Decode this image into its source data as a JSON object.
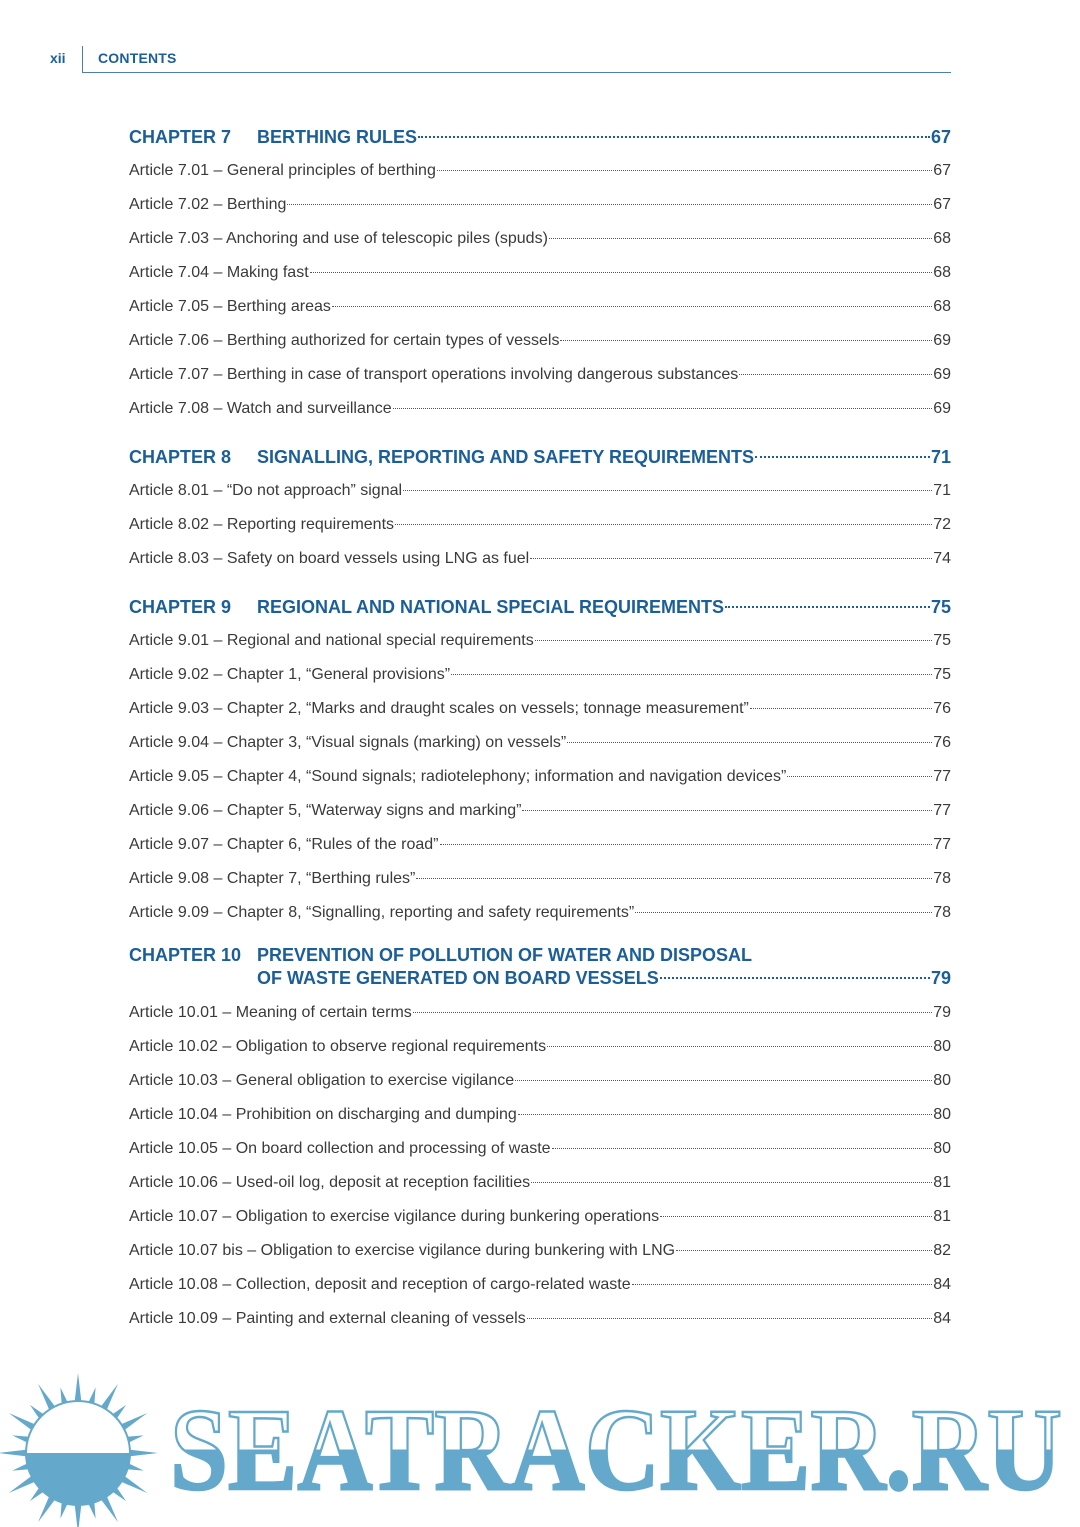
{
  "header": {
    "page_number": "xii",
    "section": "CONTENTS"
  },
  "chapters": [
    {
      "number": "CHAPTER 7",
      "title": "BERTHING RULES",
      "page": "67",
      "articles": [
        {
          "label": "Article 7.01 – General principles of berthing",
          "page": "67"
        },
        {
          "label": "Article 7.02 – Berthing",
          "page": "67"
        },
        {
          "label": "Article 7.03 – Anchoring and use of telescopic piles (spuds)",
          "page": "68"
        },
        {
          "label": "Article 7.04 – Making fast",
          "page": "68"
        },
        {
          "label": "Article 7.05 – Berthing areas",
          "page": "68"
        },
        {
          "label": "Article 7.06 – Berthing authorized for certain types of vessels",
          "page": "69"
        },
        {
          "label": "Article 7.07 – Berthing in case of transport operations involving dangerous substances",
          "page": "69"
        },
        {
          "label": "Article 7.08 – Watch and surveillance",
          "page": "69"
        }
      ]
    },
    {
      "number": "CHAPTER 8",
      "title": "SIGNALLING, REPORTING AND SAFETY REQUIREMENTS",
      "page": "71",
      "articles": [
        {
          "label": "Article 8.01 – “Do not approach” signal",
          "page": "71"
        },
        {
          "label": "Article 8.02 – Reporting requirements",
          "page": "72"
        },
        {
          "label": "Article 8.03 – Safety on board vessels using LNG as fuel",
          "page": "74"
        }
      ]
    },
    {
      "number": "CHAPTER 9",
      "title": "REGIONAL AND NATIONAL SPECIAL REQUIREMENTS",
      "page": "75",
      "articles": [
        {
          "label": "Article 9.01 – Regional and national special requirements",
          "page": "75"
        },
        {
          "label": "Article 9.02 – Chapter 1, “General provisions”",
          "page": "75"
        },
        {
          "label": "Article 9.03 – Chapter 2, “Marks and draught scales on vessels; tonnage measurement”",
          "page": "76"
        },
        {
          "label": "Article 9.04 – Chapter 3, “Visual signals (marking) on vessels”",
          "page": "76"
        },
        {
          "label": "Article 9.05 – Chapter 4, “Sound signals; radiotelephony; information and navigation devices”",
          "page": "77"
        },
        {
          "label": "Article 9.06 – Chapter 5, “Waterway signs and marking”",
          "page": "77"
        },
        {
          "label": "Article 9.07 – Chapter 6, “Rules of the road”",
          "page": "77"
        },
        {
          "label": "Article 9.08 – Chapter 7, “Berthing rules”",
          "page": "78"
        },
        {
          "label": "Article 9.09 – Chapter 8, “Signalling, reporting and safety requirements”",
          "page": "78"
        }
      ]
    },
    {
      "number": "CHAPTER 10",
      "title_line1": "PREVENTION OF POLLUTION OF WATER AND DISPOSAL",
      "title_line2": "OF WASTE GENERATED ON BOARD VESSELS",
      "page": "79",
      "articles": [
        {
          "label": "Article 10.01 – Meaning of certain terms",
          "page": "79"
        },
        {
          "label": "Article 10.02 – Obligation to observe regional requirements",
          "page": "80"
        },
        {
          "label": "Article 10.03 – General obligation to exercise vigilance",
          "page": "80"
        },
        {
          "label": "Article 10.04 – Prohibition on discharging and dumping",
          "page": "80"
        },
        {
          "label": "Article 10.05 – On board collection and processing of waste",
          "page": "80"
        },
        {
          "label": "Article 10.06 – Used-oil log, deposit at reception facilities",
          "page": "81"
        },
        {
          "label": "Article 10.07 – Obligation to exercise vigilance during bunkering operations",
          "page": "81"
        },
        {
          "label": "Article 10.07 bis – Obligation to exercise vigilance during bunkering with LNG",
          "page": "82"
        },
        {
          "label": "Article 10.08 – Collection, deposit and reception of cargo-related waste",
          "page": "84"
        },
        {
          "label": "Article 10.09 – Painting and external cleaning of vessels",
          "page": "84"
        }
      ]
    }
  ],
  "watermark": {
    "text": "SEATRACKER.RU",
    "color": "#64a9cc"
  },
  "colors": {
    "heading": "#1b5e98",
    "body": "#3a3a3a"
  }
}
